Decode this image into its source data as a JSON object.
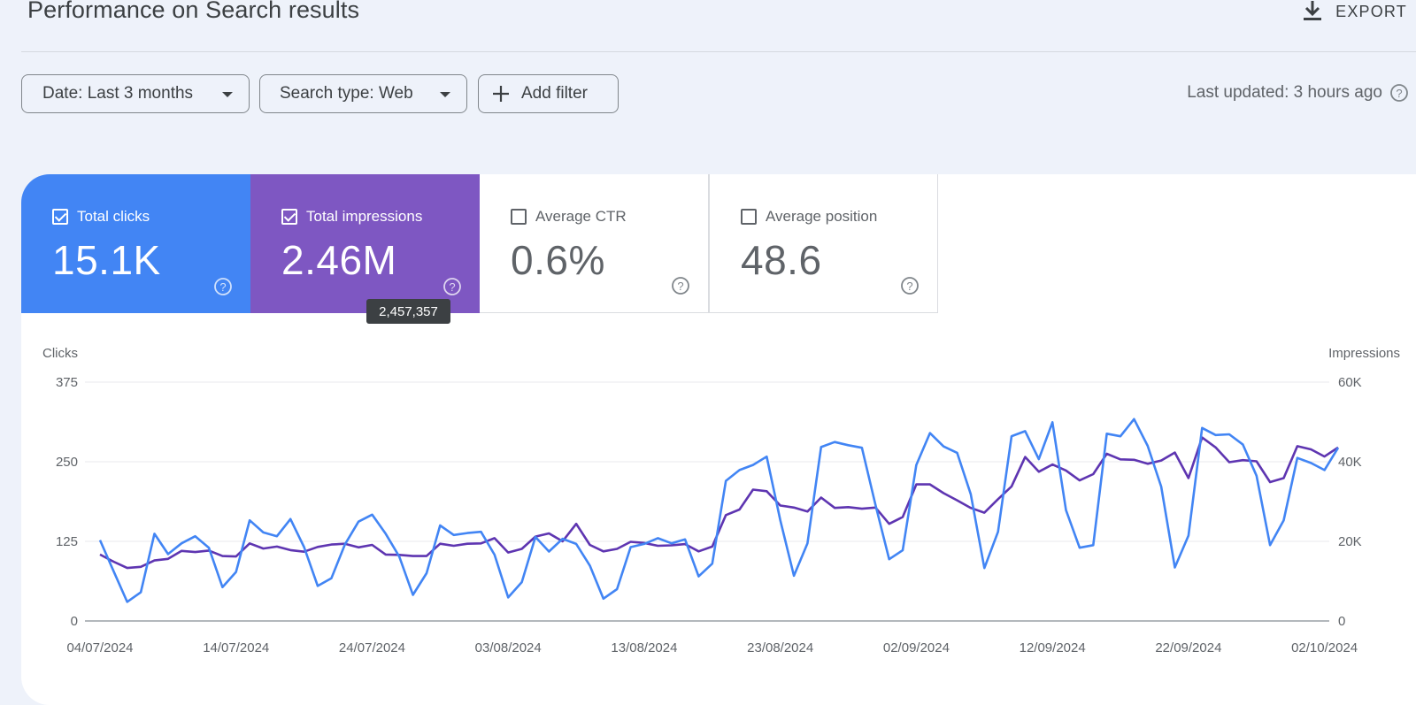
{
  "header": {
    "title": "Performance on Search results",
    "export_label": "EXPORT"
  },
  "filters": {
    "date_label": "Date: Last 3 months",
    "search_type_label": "Search type: Web",
    "add_filter_label": "Add filter",
    "last_updated": "Last updated: 3 hours ago"
  },
  "metrics": {
    "clicks": {
      "label": "Total clicks",
      "value": "15.1K",
      "checked": true
    },
    "impressions": {
      "label": "Total impressions",
      "value": "2.46M",
      "checked": true
    },
    "ctr": {
      "label": "Average CTR",
      "value": "0.6%",
      "checked": false
    },
    "position": {
      "label": "Average position",
      "value": "48.6",
      "checked": false
    }
  },
  "tooltip": {
    "text": "2,457,357"
  },
  "colors": {
    "clicks": "#4285f4",
    "impressions": "#7e57c2",
    "impressions_line": "#5e35b1"
  },
  "chart_data": {
    "type": "line",
    "ylabel_left": "Clicks",
    "ylabel_right": "Impressions",
    "y_left_ticks": [
      "0",
      "125",
      "250",
      "375"
    ],
    "y_right_ticks": [
      "0",
      "20K",
      "40K",
      "60K"
    ],
    "ylim_left": [
      0,
      375
    ],
    "ylim_right": [
      0,
      60000
    ],
    "x_tick_labels": [
      "04/07/2024",
      "14/07/2024",
      "24/07/2024",
      "03/08/2024",
      "13/08/2024",
      "23/08/2024",
      "02/09/2024",
      "12/09/2024",
      "22/09/2024",
      "02/10/2024"
    ],
    "x_tick_indices": [
      0,
      10,
      20,
      30,
      40,
      50,
      60,
      70,
      80,
      90
    ],
    "grid": true,
    "series": [
      {
        "name": "Total clicks",
        "axis": "left",
        "values": [
          127,
          78,
          30,
          45,
          137,
          105,
          122,
          133,
          115,
          53,
          77,
          158,
          139,
          133,
          160,
          116,
          55,
          67,
          120,
          156,
          167,
          137,
          101,
          41,
          75,
          150,
          135,
          138,
          140,
          104,
          37,
          61,
          132,
          109,
          129,
          121,
          87,
          35,
          50,
          116,
          121,
          130,
          122,
          128,
          70,
          90,
          220,
          237,
          245,
          258,
          158,
          71,
          122,
          273,
          281,
          276,
          272,
          182,
          97,
          111,
          245,
          295,
          274,
          264,
          199,
          83,
          140,
          290,
          298,
          254,
          312,
          174,
          115,
          119,
          294,
          290,
          317,
          275,
          211,
          84,
          134,
          303,
          292,
          293,
          277,
          228,
          119,
          158,
          256,
          248,
          237,
          272
        ],
        "start": "04/07/2024"
      },
      {
        "name": "Total impressions",
        "axis": "right",
        "values": [
          16700,
          14900,
          13300,
          13600,
          15200,
          15600,
          17600,
          17300,
          17700,
          16300,
          16200,
          19500,
          18200,
          18700,
          17800,
          17400,
          18600,
          19200,
          19400,
          18500,
          19100,
          16700,
          16600,
          16300,
          16300,
          19400,
          18900,
          19400,
          19500,
          20800,
          17200,
          18100,
          21200,
          22000,
          20000,
          24400,
          19100,
          17500,
          18100,
          19900,
          19600,
          18900,
          19000,
          19300,
          17500,
          18700,
          26600,
          28000,
          33000,
          32600,
          29000,
          28500,
          27500,
          31000,
          28400,
          28600,
          28200,
          28500,
          24400,
          26100,
          34300,
          34300,
          32100,
          30300,
          28400,
          27200,
          30600,
          33800,
          41200,
          37500,
          39300,
          37800,
          35300,
          36900,
          42000,
          40600,
          40500,
          39500,
          40300,
          42300,
          35900,
          46100,
          43600,
          39900,
          40400,
          40100,
          34900,
          35900,
          43900,
          43100,
          41300,
          43600
        ]
      }
    ]
  }
}
